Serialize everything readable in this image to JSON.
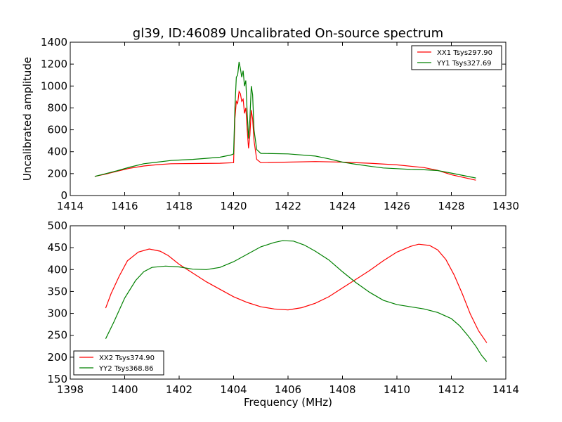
{
  "chart_data": [
    {
      "type": "line",
      "title": "gl39, ID:46089 Uncalibrated On-source spectrum",
      "xlabel": "",
      "ylabel": "Uncalibrated amplitude",
      "xlim": [
        1414,
        1430
      ],
      "ylim": [
        0,
        1400
      ],
      "xticks": [
        1414,
        1416,
        1418,
        1420,
        1422,
        1424,
        1426,
        1428,
        1430
      ],
      "yticks": [
        0,
        200,
        400,
        600,
        800,
        1000,
        1200,
        1400
      ],
      "grid": false,
      "legend": "top-right",
      "series": [
        {
          "name": "XX1 Tsys297.90",
          "color": "#ff0000",
          "points": [
            [
              1414.9,
              175
            ],
            [
              1415.3,
              195
            ],
            [
              1415.7,
              220
            ],
            [
              1416.2,
              250
            ],
            [
              1416.7,
              270
            ],
            [
              1417.2,
              282
            ],
            [
              1417.7,
              290
            ],
            [
              1418.5,
              292
            ],
            [
              1419.5,
              295
            ],
            [
              1420.0,
              300
            ],
            [
              1420.05,
              700
            ],
            [
              1420.1,
              860
            ],
            [
              1420.15,
              840
            ],
            [
              1420.2,
              950
            ],
            [
              1420.25,
              930
            ],
            [
              1420.3,
              860
            ],
            [
              1420.35,
              880
            ],
            [
              1420.4,
              750
            ],
            [
              1420.45,
              800
            ],
            [
              1420.5,
              600
            ],
            [
              1420.55,
              430
            ],
            [
              1420.6,
              550
            ],
            [
              1420.65,
              780
            ],
            [
              1420.7,
              700
            ],
            [
              1420.75,
              500
            ],
            [
              1420.85,
              330
            ],
            [
              1421.0,
              300
            ],
            [
              1422.0,
              305
            ],
            [
              1423.0,
              310
            ],
            [
              1424.0,
              305
            ],
            [
              1425.0,
              295
            ],
            [
              1426.0,
              280
            ],
            [
              1427.0,
              255
            ],
            [
              1427.5,
              230
            ],
            [
              1428.0,
              190
            ],
            [
              1428.9,
              140
            ]
          ]
        },
        {
          "name": "YY1 Tsys327.69",
          "color": "#008000",
          "points": [
            [
              1414.9,
              175
            ],
            [
              1415.3,
              200
            ],
            [
              1415.7,
              225
            ],
            [
              1416.2,
              260
            ],
            [
              1416.7,
              290
            ],
            [
              1417.2,
              305
            ],
            [
              1417.7,
              320
            ],
            [
              1418.5,
              330
            ],
            [
              1419.0,
              340
            ],
            [
              1419.5,
              350
            ],
            [
              1419.9,
              370
            ],
            [
              1420.0,
              380
            ],
            [
              1420.05,
              800
            ],
            [
              1420.1,
              1080
            ],
            [
              1420.15,
              1100
            ],
            [
              1420.2,
              1220
            ],
            [
              1420.25,
              1160
            ],
            [
              1420.3,
              1080
            ],
            [
              1420.35,
              1140
            ],
            [
              1420.4,
              1000
            ],
            [
              1420.45,
              1050
            ],
            [
              1420.5,
              750
            ],
            [
              1420.55,
              520
            ],
            [
              1420.6,
              700
            ],
            [
              1420.65,
              1000
            ],
            [
              1420.7,
              920
            ],
            [
              1420.75,
              600
            ],
            [
              1420.85,
              420
            ],
            [
              1421.0,
              385
            ],
            [
              1422.0,
              380
            ],
            [
              1423.0,
              360
            ],
            [
              1423.5,
              335
            ],
            [
              1424.0,
              305
            ],
            [
              1424.5,
              285
            ],
            [
              1425.0,
              268
            ],
            [
              1425.5,
              252
            ],
            [
              1426.0,
              245
            ],
            [
              1426.5,
              238
            ],
            [
              1427.0,
              235
            ],
            [
              1427.5,
              228
            ],
            [
              1428.0,
              205
            ],
            [
              1428.9,
              160
            ]
          ]
        }
      ]
    },
    {
      "type": "line",
      "title": "",
      "xlabel": "Frequency (MHz)",
      "ylabel": "",
      "xlim": [
        1398,
        1414
      ],
      "ylim": [
        150,
        500
      ],
      "xticks": [
        1398,
        1400,
        1402,
        1404,
        1406,
        1408,
        1410,
        1412,
        1414
      ],
      "yticks": [
        150,
        200,
        250,
        300,
        350,
        400,
        450,
        500
      ],
      "grid": false,
      "legend": "bottom-left",
      "series": [
        {
          "name": "XX2 Tsys374.90",
          "color": "#ff0000",
          "points": [
            [
              1399.3,
              312
            ],
            [
              1399.5,
              345
            ],
            [
              1399.8,
              385
            ],
            [
              1400.1,
              420
            ],
            [
              1400.5,
              440
            ],
            [
              1400.9,
              447
            ],
            [
              1401.3,
              442
            ],
            [
              1401.6,
              432
            ],
            [
              1402.0,
              412
            ],
            [
              1402.5,
              392
            ],
            [
              1403.0,
              372
            ],
            [
              1403.5,
              355
            ],
            [
              1404.0,
              338
            ],
            [
              1404.5,
              325
            ],
            [
              1405.0,
              315
            ],
            [
              1405.5,
              310
            ],
            [
              1406.0,
              308
            ],
            [
              1406.5,
              313
            ],
            [
              1407.0,
              323
            ],
            [
              1407.5,
              338
            ],
            [
              1408.0,
              358
            ],
            [
              1408.5,
              378
            ],
            [
              1409.0,
              398
            ],
            [
              1409.5,
              420
            ],
            [
              1410.0,
              440
            ],
            [
              1410.5,
              453
            ],
            [
              1410.8,
              458
            ],
            [
              1411.2,
              455
            ],
            [
              1411.5,
              445
            ],
            [
              1411.8,
              423
            ],
            [
              1412.1,
              388
            ],
            [
              1412.4,
              345
            ],
            [
              1412.7,
              298
            ],
            [
              1413.0,
              260
            ],
            [
              1413.3,
              233
            ]
          ]
        },
        {
          "name": "YY2 Tsys368.86",
          "color": "#008000",
          "points": [
            [
              1399.3,
              242
            ],
            [
              1399.6,
              280
            ],
            [
              1400.0,
              335
            ],
            [
              1400.4,
              375
            ],
            [
              1400.7,
              395
            ],
            [
              1401.0,
              405
            ],
            [
              1401.5,
              408
            ],
            [
              1402.0,
              406
            ],
            [
              1402.5,
              401
            ],
            [
              1403.0,
              400
            ],
            [
              1403.5,
              405
            ],
            [
              1404.0,
              418
            ],
            [
              1404.5,
              435
            ],
            [
              1405.0,
              452
            ],
            [
              1405.5,
              462
            ],
            [
              1405.8,
              466
            ],
            [
              1406.2,
              465
            ],
            [
              1406.6,
              456
            ],
            [
              1407.0,
              442
            ],
            [
              1407.5,
              422
            ],
            [
              1408.0,
              395
            ],
            [
              1408.5,
              370
            ],
            [
              1409.0,
              348
            ],
            [
              1409.5,
              330
            ],
            [
              1410.0,
              320
            ],
            [
              1410.5,
              315
            ],
            [
              1411.0,
              310
            ],
            [
              1411.5,
              302
            ],
            [
              1412.0,
              288
            ],
            [
              1412.3,
              272
            ],
            [
              1412.6,
              250
            ],
            [
              1412.9,
              225
            ],
            [
              1413.1,
              205
            ],
            [
              1413.3,
              190
            ]
          ]
        }
      ]
    }
  ]
}
